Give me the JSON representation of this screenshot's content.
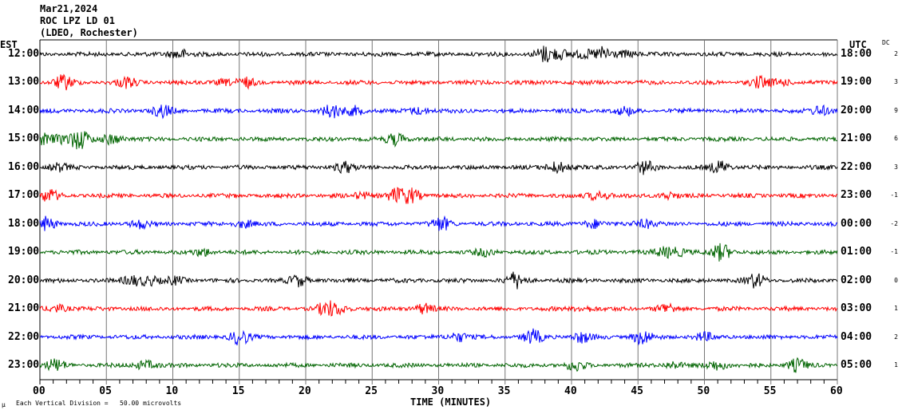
{
  "header": {
    "date": "Mar21,2024",
    "station": "ROC LPZ LD 01",
    "network": "(LDEO, Rochester)"
  },
  "left_axis_title": "EST",
  "right_axis_title": "UTC",
  "dc_title": "DC",
  "footer": {
    "mark": "µ",
    "scale_note": "Each Vertical Division =   50.00 microvolts"
  },
  "chart_data": {
    "type": "line",
    "title": "",
    "xlabel": "TIME (MINUTES)",
    "xlim": [
      0,
      60
    ],
    "x_ticks": [
      "00",
      "05",
      "10",
      "15",
      "20",
      "25",
      "30",
      "35",
      "40",
      "45",
      "50",
      "55",
      "60"
    ],
    "x_minor_tick_step": 1,
    "grid": "vertical every 5 minutes",
    "trace_colors": [
      "#000000",
      "#ff0000",
      "#0000ff",
      "#006400"
    ],
    "rows": [
      {
        "est": "12:00",
        "utc": "18:00",
        "dc": "2"
      },
      {
        "est": "13:00",
        "utc": "19:00",
        "dc": "3"
      },
      {
        "est": "14:00",
        "utc": "20:00",
        "dc": "9"
      },
      {
        "est": "15:00",
        "utc": "21:00",
        "dc": "6"
      },
      {
        "est": "16:00",
        "utc": "22:00",
        "dc": "3"
      },
      {
        "est": "17:00",
        "utc": "23:00",
        "dc": "-1"
      },
      {
        "est": "18:00",
        "utc": "00:00",
        "dc": "-2"
      },
      {
        "est": "19:00",
        "utc": "01:00",
        "dc": "-1"
      },
      {
        "est": "20:00",
        "utc": "02:00",
        "dc": "0"
      },
      {
        "est": "21:00",
        "utc": "03:00",
        "dc": "1"
      },
      {
        "est": "22:00",
        "utc": "04:00",
        "dc": "2"
      },
      {
        "est": "23:00",
        "utc": "05:00",
        "dc": "1"
      }
    ]
  }
}
